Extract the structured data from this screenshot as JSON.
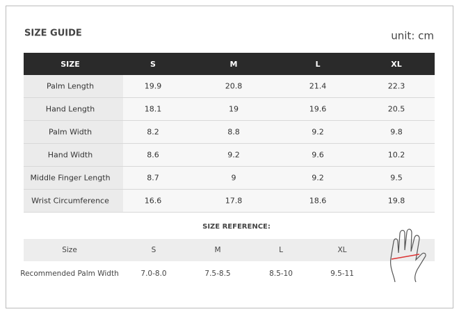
{
  "header": {
    "title": "SIZE GUIDE",
    "unit": "unit: cm"
  },
  "table": {
    "columns": [
      "SIZE",
      "S",
      "M",
      "L",
      "XL"
    ],
    "rows": [
      [
        "Palm Length",
        "19.9",
        "20.8",
        "21.4",
        "22.3"
      ],
      [
        "Hand Length",
        "18.1",
        "19",
        "19.6",
        "20.5"
      ],
      [
        "Palm Width",
        "8.2",
        "8.8",
        "9.2",
        "9.8"
      ],
      [
        "Hand Width",
        "8.6",
        "9.2",
        "9.6",
        "10.2"
      ],
      [
        "Middle Finger Length",
        "8.7",
        "9",
        "9.2",
        "9.5"
      ],
      [
        "Wrist Circumference",
        "16.6",
        "17.8",
        "18.6",
        "19.8"
      ]
    ]
  },
  "reference": {
    "title": "SIZE REFERENCE:",
    "rows": [
      [
        "Size",
        "S",
        "M",
        "L",
        "XL"
      ],
      [
        "Recommended Palm Width",
        "7.0-8.0",
        "7.5-8.5",
        "8.5-10",
        "9.5-11"
      ]
    ]
  }
}
